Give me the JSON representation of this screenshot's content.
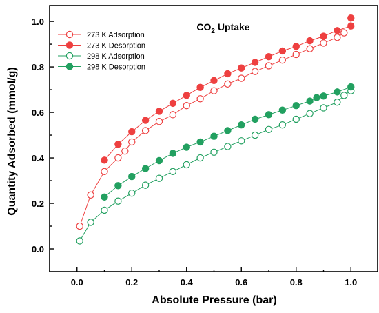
{
  "chart_data": {
    "type": "scatter",
    "title_main": "CO",
    "title_sub": "2",
    "title_rest": " Uptake",
    "xlabel": "Absolute Pressure (bar)",
    "ylabel": "Quantity Adsorbed (mmol/g)",
    "xlim": [
      -0.1,
      1.1
    ],
    "ylim": [
      -0.1,
      1.07
    ],
    "xticks": [
      "0.0",
      "0.2",
      "0.4",
      "0.6",
      "0.8",
      "1.0"
    ],
    "yticks": [
      "0.0",
      "0.2",
      "0.4",
      "0.6",
      "0.8",
      "1.0"
    ],
    "grid": false,
    "legend_position": "top-left",
    "series": [
      {
        "name": "273 K Adsorption",
        "color": "#ee4040",
        "filled": false,
        "points": [
          [
            0.01,
            0.1
          ],
          [
            0.05,
            0.237
          ],
          [
            0.1,
            0.34
          ],
          [
            0.15,
            0.4
          ],
          [
            0.175,
            0.43
          ],
          [
            0.2,
            0.47
          ],
          [
            0.25,
            0.52
          ],
          [
            0.3,
            0.56
          ],
          [
            0.35,
            0.59
          ],
          [
            0.4,
            0.63
          ],
          [
            0.45,
            0.66
          ],
          [
            0.5,
            0.695
          ],
          [
            0.55,
            0.725
          ],
          [
            0.6,
            0.75
          ],
          [
            0.65,
            0.78
          ],
          [
            0.7,
            0.805
          ],
          [
            0.75,
            0.83
          ],
          [
            0.8,
            0.855
          ],
          [
            0.85,
            0.88
          ],
          [
            0.9,
            0.905
          ],
          [
            0.95,
            0.93
          ],
          [
            0.975,
            0.95
          ]
        ]
      },
      {
        "name": "273 K Desorption",
        "color": "#ee4040",
        "filled": true,
        "points": [
          [
            0.1,
            0.39
          ],
          [
            0.15,
            0.46
          ],
          [
            0.2,
            0.515
          ],
          [
            0.25,
            0.565
          ],
          [
            0.3,
            0.605
          ],
          [
            0.35,
            0.64
          ],
          [
            0.4,
            0.675
          ],
          [
            0.45,
            0.71
          ],
          [
            0.5,
            0.74
          ],
          [
            0.55,
            0.77
          ],
          [
            0.6,
            0.795
          ],
          [
            0.65,
            0.82
          ],
          [
            0.7,
            0.845
          ],
          [
            0.75,
            0.87
          ],
          [
            0.8,
            0.89
          ],
          [
            0.85,
            0.915
          ],
          [
            0.9,
            0.935
          ],
          [
            0.95,
            0.96
          ],
          [
            1.0,
            0.98
          ],
          [
            1.0,
            1.015
          ]
        ]
      },
      {
        "name": "298 K Adsorption",
        "color": "#22a060",
        "filled": false,
        "points": [
          [
            0.01,
            0.035
          ],
          [
            0.05,
            0.117
          ],
          [
            0.1,
            0.17
          ],
          [
            0.15,
            0.21
          ],
          [
            0.2,
            0.245
          ],
          [
            0.25,
            0.28
          ],
          [
            0.3,
            0.31
          ],
          [
            0.35,
            0.34
          ],
          [
            0.4,
            0.37
          ],
          [
            0.45,
            0.4
          ],
          [
            0.5,
            0.425
          ],
          [
            0.55,
            0.45
          ],
          [
            0.6,
            0.475
          ],
          [
            0.65,
            0.5
          ],
          [
            0.7,
            0.525
          ],
          [
            0.75,
            0.545
          ],
          [
            0.8,
            0.57
          ],
          [
            0.85,
            0.595
          ],
          [
            0.9,
            0.62
          ],
          [
            0.95,
            0.645
          ],
          [
            0.975,
            0.675
          ],
          [
            1.0,
            0.695
          ]
        ]
      },
      {
        "name": "298 K Desorption",
        "color": "#22a060",
        "filled": true,
        "points": [
          [
            0.1,
            0.228
          ],
          [
            0.15,
            0.278
          ],
          [
            0.2,
            0.318
          ],
          [
            0.25,
            0.353
          ],
          [
            0.3,
            0.388
          ],
          [
            0.35,
            0.42
          ],
          [
            0.4,
            0.447
          ],
          [
            0.45,
            0.47
          ],
          [
            0.5,
            0.495
          ],
          [
            0.55,
            0.52
          ],
          [
            0.6,
            0.545
          ],
          [
            0.65,
            0.57
          ],
          [
            0.7,
            0.59
          ],
          [
            0.75,
            0.61
          ],
          [
            0.8,
            0.63
          ],
          [
            0.85,
            0.65
          ],
          [
            0.875,
            0.665
          ],
          [
            0.9,
            0.672
          ],
          [
            0.95,
            0.69
          ],
          [
            1.0,
            0.712
          ]
        ]
      }
    ]
  }
}
